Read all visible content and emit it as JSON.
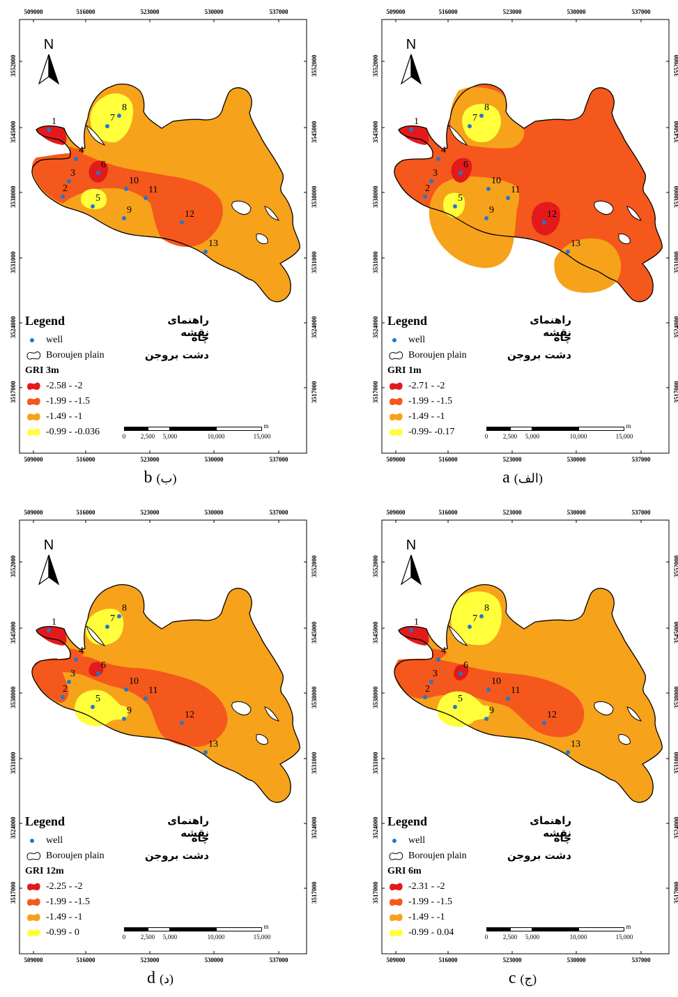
{
  "x_ticks": [
    "509000",
    "516000",
    "523000",
    "530000",
    "537000"
  ],
  "y_ticks": [
    "3552000",
    "3545000",
    "3538000",
    "3531000",
    "3524000",
    "3517000"
  ],
  "north_label": "N",
  "legend": {
    "title": "Legend",
    "well": "well",
    "plain": "Boroujen plain",
    "fa_title": "راهنمای نقشه",
    "fa_well": "چاه",
    "fa_plain": "دشت بروجن"
  },
  "scale_bar": {
    "unit": "m",
    "labels": [
      "0",
      "2,500",
      "5,000",
      "10,000",
      "15,000"
    ]
  },
  "colors": {
    "class1": "#e31a1c",
    "class2": "#f4581c",
    "class3": "#f7a21b",
    "class4": "#ffff3c",
    "well": "#1f78d1",
    "water": "#ffffff"
  },
  "wells": [
    {
      "id": "1"
    },
    {
      "id": "2"
    },
    {
      "id": "3"
    },
    {
      "id": "4"
    },
    {
      "id": "5"
    },
    {
      "id": "6"
    },
    {
      "id": "7"
    },
    {
      "id": "8"
    },
    {
      "id": "9"
    },
    {
      "id": "10"
    },
    {
      "id": "11"
    },
    {
      "id": "12"
    },
    {
      "id": "13"
    }
  ],
  "panels": [
    {
      "key": "a",
      "caption_letter": "a",
      "caption_fa": "(الف)",
      "gri_title": "GRI 1m",
      "classes": [
        "-2.71 - -2",
        "-1.99 - -1.5",
        "-1.49 - -1",
        "-0.99- -0.17"
      ]
    },
    {
      "key": "b",
      "caption_letter": "b",
      "caption_fa": "(ب)",
      "gri_title": "GRI 3m",
      "classes": [
        "-2.58 - -2",
        "-1.99 - -1.5",
        "-1.49 - -1",
        "-0.99 - -0.036"
      ]
    },
    {
      "key": "c",
      "caption_letter": "c",
      "caption_fa": "(ج)",
      "gri_title": "GRI 6m",
      "classes": [
        "-2.31 - -2",
        "-1.99 - -1.5",
        "-1.49 - -1",
        "-0.99 - 0.04"
      ]
    },
    {
      "key": "d",
      "caption_letter": "d",
      "caption_fa": "(د)",
      "gri_title": "GRI 12m",
      "classes": [
        "-2.25 - -2",
        "-1.99 - -1.5",
        "-1.49 - -1",
        "-0.99 - 0"
      ]
    }
  ]
}
